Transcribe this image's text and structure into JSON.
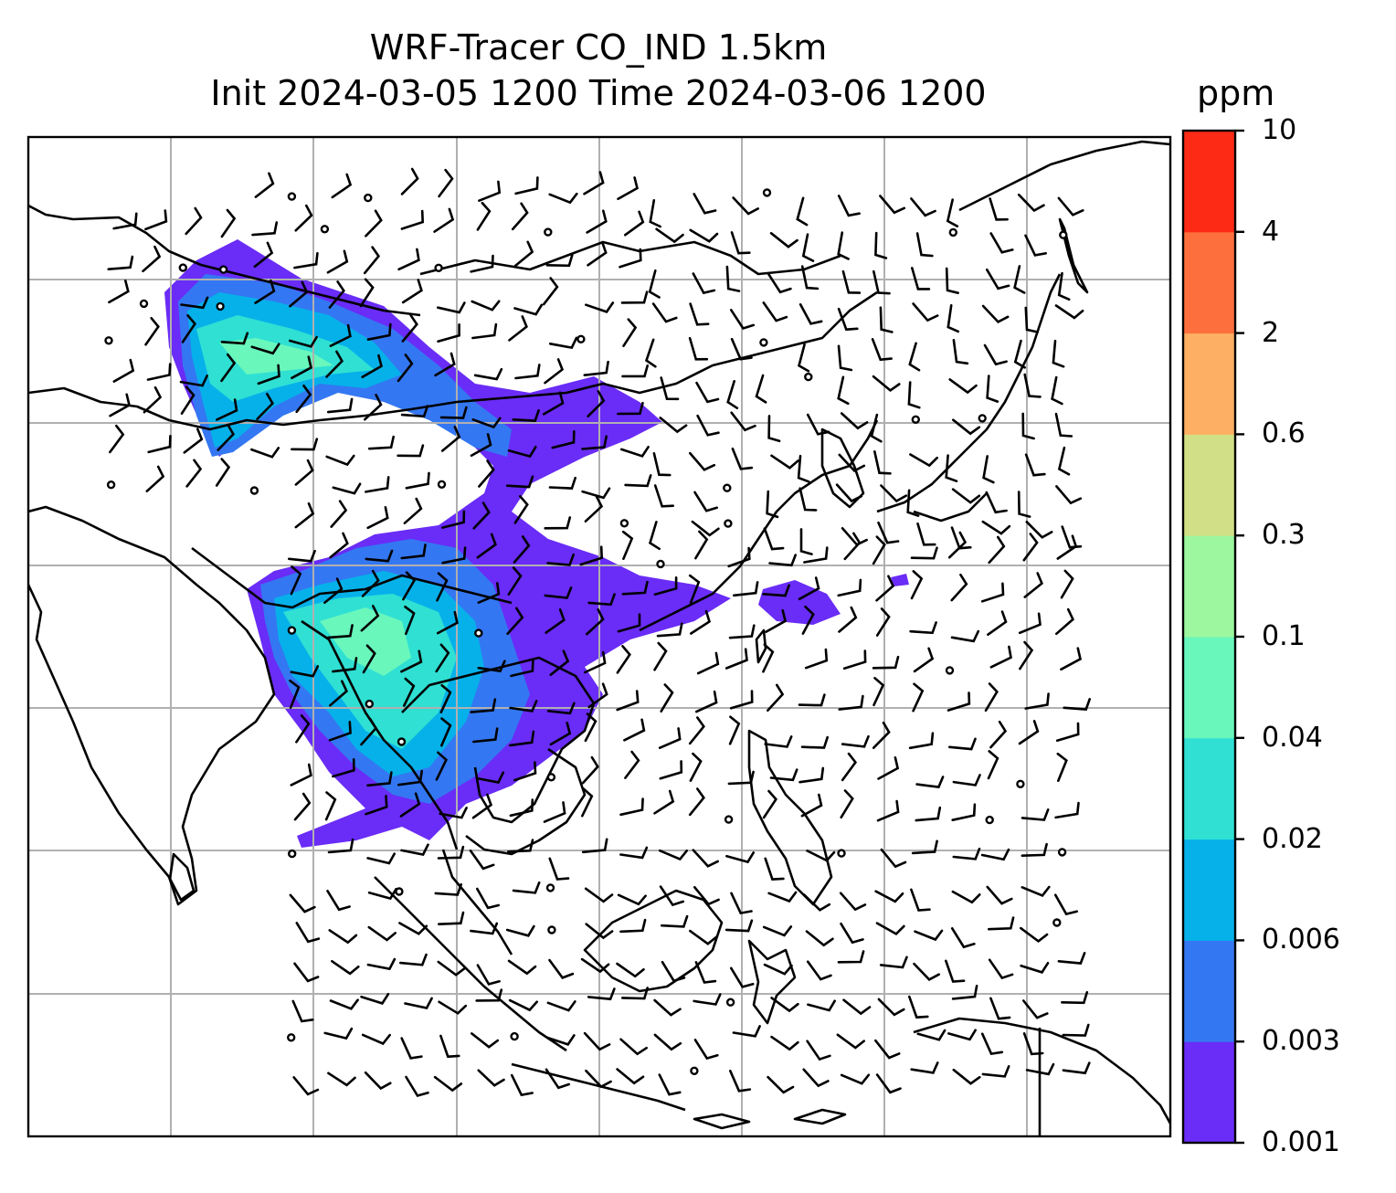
{
  "title": {
    "line1": "WRF-Tracer CO_IND 1.5km",
    "line2": "Init 2024-03-05 1200 Time 2024-03-06 1200"
  },
  "colorbar": {
    "unit": "ppm",
    "labels": [
      "0.001",
      "0.003",
      "0.006",
      "0.02",
      "0.04",
      "0.1",
      "0.3",
      "0.6",
      "2",
      "4",
      "10"
    ],
    "colors": [
      "#6a2cf7",
      "#3477f2",
      "#06b1ea",
      "#2fe0d3",
      "#69f7bc",
      "#9cf79e",
      "#d1e086",
      "#fdb064",
      "#fd6f3c",
      "#fd2a15"
    ]
  },
  "map": {
    "type": "filled-contour tracer map with wind barbs",
    "grid": true,
    "coastline_color": "#000000",
    "barb_color": "#000000"
  }
}
